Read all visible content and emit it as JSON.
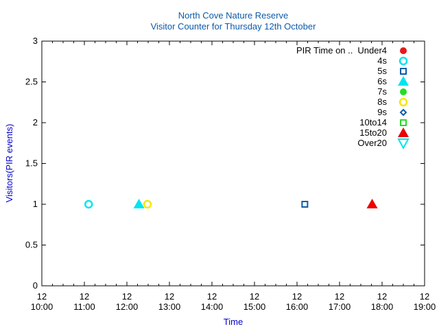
{
  "chart_data": {
    "type": "scatter",
    "title": "North Cove Nature Reserve",
    "subtitle": "Visitor Counter for Thursday 12th October",
    "xlabel": "Time",
    "ylabel": "Visitors(PIR events)",
    "xlim": [
      "10:00",
      "19:00"
    ],
    "ylim": [
      0,
      3
    ],
    "y_ticks": [
      "0",
      "0.5",
      "1",
      "1.5",
      "2",
      "2.5",
      "3"
    ],
    "x_ticks": [
      {
        "day": "12",
        "time": "10:00"
      },
      {
        "day": "12",
        "time": "11:00"
      },
      {
        "day": "12",
        "time": "12:00"
      },
      {
        "day": "12",
        "time": "13:00"
      },
      {
        "day": "12",
        "time": "14:00"
      },
      {
        "day": "12",
        "time": "15:00"
      },
      {
        "day": "12",
        "time": "16:00"
      },
      {
        "day": "12",
        "time": "17:00"
      },
      {
        "day": "12",
        "time": "18:00"
      },
      {
        "day": "12",
        "time": "19:00"
      }
    ],
    "grid": false,
    "legend_position": "top-right",
    "legend_title": "PIR Time on ..",
    "series": [
      {
        "name": "Under4",
        "marker": "circle-filled",
        "color": "#e41a1c",
        "points": []
      },
      {
        "name": "4s",
        "marker": "circle-open",
        "color": "#00e5ee",
        "points": [
          {
            "x": "11:06",
            "y": 1
          }
        ]
      },
      {
        "name": "5s",
        "marker": "square-open",
        "color": "#0b5aa8",
        "points": [
          {
            "x": "16:11",
            "y": 1
          }
        ]
      },
      {
        "name": "6s",
        "marker": "triangle-filled",
        "color": "#00e5ee",
        "points": [
          {
            "x": "12:17",
            "y": 1
          }
        ]
      },
      {
        "name": "7s",
        "marker": "circle-filled",
        "color": "#22dd22",
        "points": []
      },
      {
        "name": "8s",
        "marker": "circle-open",
        "color": "#f5e600",
        "points": [
          {
            "x": "12:29",
            "y": 1
          }
        ]
      },
      {
        "name": "9s",
        "marker": "diamond-open",
        "color": "#0b5aa8",
        "points": []
      },
      {
        "name": "10to14",
        "marker": "square-open",
        "color": "#22dd22",
        "points": []
      },
      {
        "name": "15to20",
        "marker": "triangle-filled",
        "color": "#ee0000",
        "points": [
          {
            "x": "17:46",
            "y": 1
          }
        ]
      },
      {
        "name": "Over20",
        "marker": "triangle-down-open",
        "color": "#00e5ee",
        "points": []
      }
    ]
  }
}
